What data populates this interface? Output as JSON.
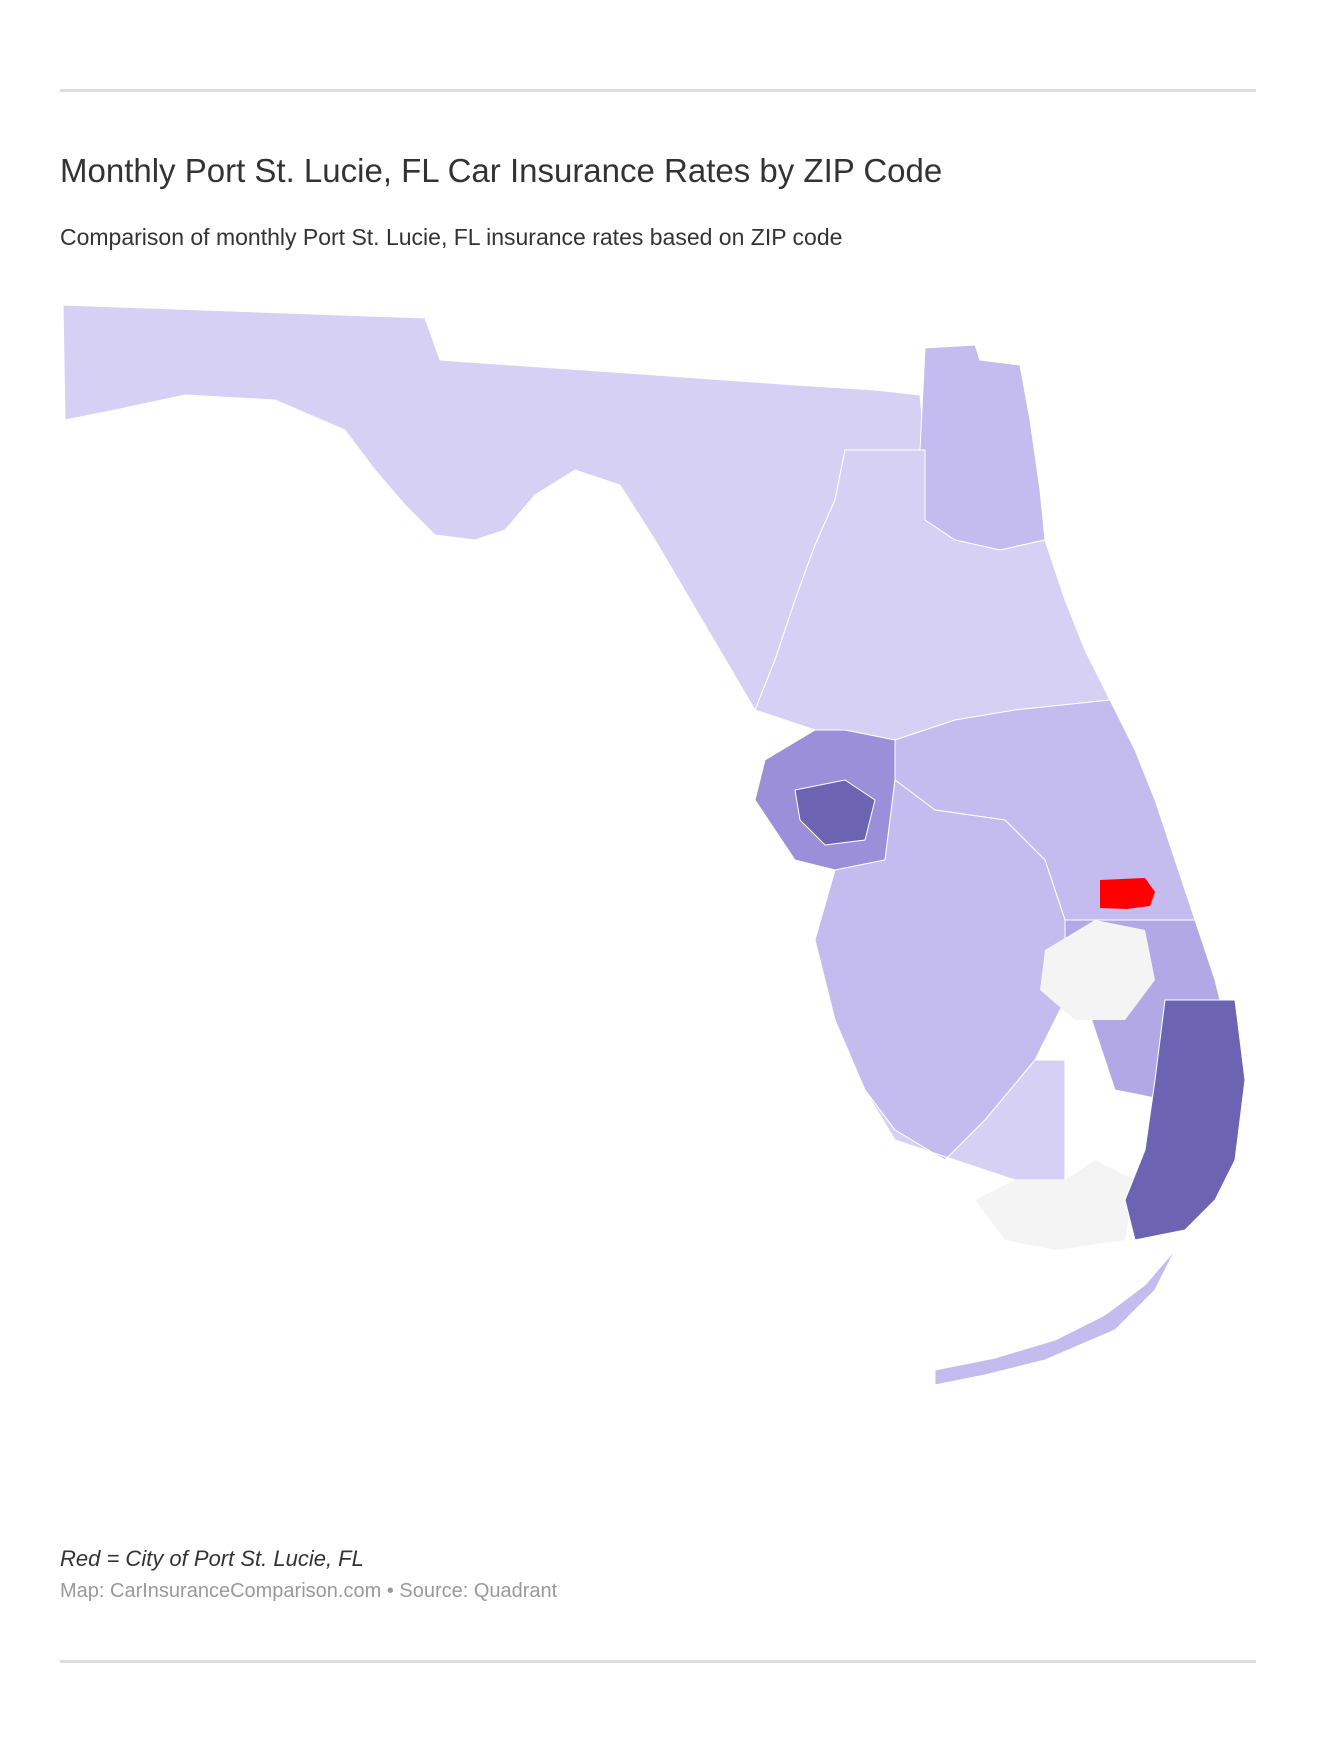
{
  "header": {
    "title": "Monthly Port St. Lucie, FL Car Insurance Rates by ZIP Code",
    "subtitle": "Comparison of monthly Port St. Lucie, FL insurance rates based on ZIP code"
  },
  "map": {
    "region": "Florida",
    "highlight_color": "#ff0000",
    "no_data_color": "#f4f4f4",
    "scale_colors": [
      "#d7d0f5",
      "#c4bbee",
      "#b2a8e6",
      "#9a8fd8",
      "#6d63b3"
    ]
  },
  "footer": {
    "legend_note": "Red = City of Port St. Lucie, FL",
    "credit": "Map: CarInsuranceComparison.com • Source: Quadrant"
  }
}
